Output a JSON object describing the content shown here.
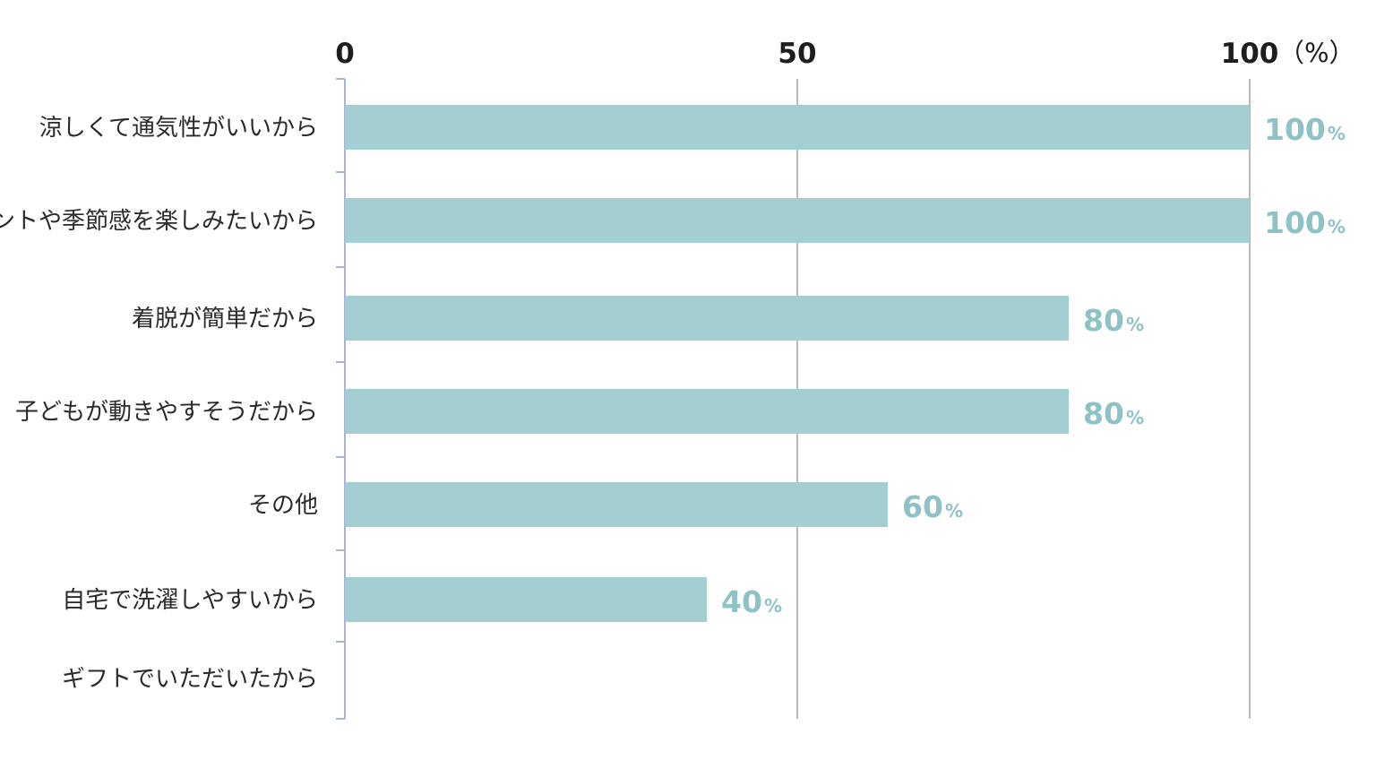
{
  "chart_data": {
    "type": "bar",
    "orientation": "horizontal",
    "categories": [
      "涼しくて通気性がいいから",
      "イベントや季節感を楽しみたいから",
      "着脱が簡単だから",
      "子どもが動きやすそうだから",
      "その他",
      "自宅で洗濯しやすいから",
      "ギフトでいただいたから"
    ],
    "values": [
      100,
      100,
      80,
      80,
      60,
      40,
      0
    ],
    "value_labels": [
      "100",
      "100",
      "80",
      "80",
      "60",
      "40",
      ""
    ],
    "value_suffix": "%",
    "xlim": [
      0,
      100
    ],
    "xticks": [
      0,
      50,
      100
    ],
    "xtick_labels": [
      "0",
      "50",
      "100"
    ],
    "x_unit": "（%）",
    "axis_position": "top",
    "grid": true,
    "colors": {
      "bar": "#a3ced2",
      "value_text": "#8ec2c7",
      "grid": "#b9b9b9",
      "axis": "#a8b4d4"
    }
  }
}
